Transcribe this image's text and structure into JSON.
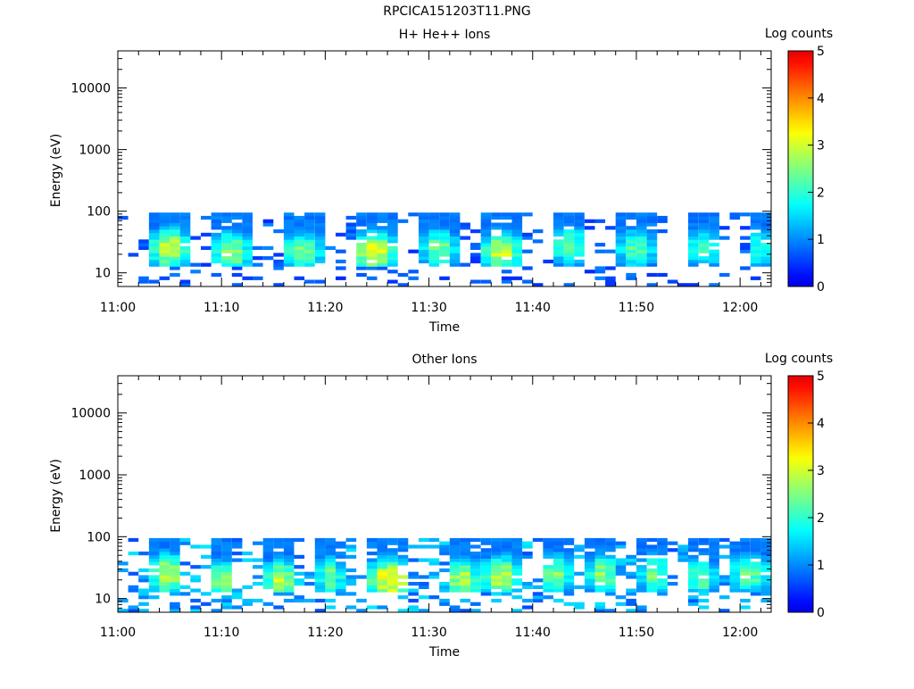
{
  "figure_title": "RPCICA151203T11.PNG",
  "chart_data": [
    {
      "type": "heatmap",
      "title": "H+ He++ Ions",
      "xlabel": "Time",
      "ylabel": "Energy (eV)",
      "y_scale": "log",
      "ylim": [
        6,
        40000
      ],
      "xlim": [
        "11:00",
        "12:03"
      ],
      "x_ticks": [
        "11:00",
        "11:10",
        "11:20",
        "11:30",
        "11:40",
        "11:50",
        "12:00"
      ],
      "y_ticks": [
        "10",
        "100",
        "1000",
        "10000"
      ],
      "colorbar": {
        "label": "Log counts",
        "range": [
          0,
          5
        ],
        "ticks": [
          "0",
          "1",
          "2",
          "3",
          "4",
          "5"
        ]
      },
      "energy_band_eV": [
        6,
        95
      ],
      "bursts": [
        {
          "start": "11:03.5",
          "end": "11:06.5",
          "peak_log_counts": 3.0,
          "peak_energy_eV": 25
        },
        {
          "start": "11:09.5",
          "end": "11:12.5",
          "peak_log_counts": 2.7,
          "peak_energy_eV": 22
        },
        {
          "start": "11:16",
          "end": "11:19.5",
          "peak_log_counts": 2.4,
          "peak_energy_eV": 22
        },
        {
          "start": "11:23",
          "end": "11:26.5",
          "peak_log_counts": 3.1,
          "peak_energy_eV": 22
        },
        {
          "start": "11:29.5",
          "end": "11:32.5",
          "peak_log_counts": 2.4,
          "peak_energy_eV": 25
        },
        {
          "start": "11:35.5",
          "end": "11:38.5",
          "peak_log_counts": 3.0,
          "peak_energy_eV": 22
        },
        {
          "start": "11:42",
          "end": "11:45",
          "peak_log_counts": 2.3,
          "peak_energy_eV": 28
        },
        {
          "start": "11:48.5",
          "end": "11:51.5",
          "peak_log_counts": 2.3,
          "peak_energy_eV": 25
        },
        {
          "start": "11:55",
          "end": "11:58",
          "peak_log_counts": 2.1,
          "peak_energy_eV": 25
        },
        {
          "start": "12:01",
          "end": "12:03",
          "peak_log_counts": 2.1,
          "peak_energy_eV": 25
        }
      ]
    },
    {
      "type": "heatmap",
      "title": "Other Ions",
      "xlabel": "Time",
      "ylabel": "Energy (eV)",
      "y_scale": "log",
      "ylim": [
        6,
        40000
      ],
      "xlim": [
        "11:00",
        "12:03"
      ],
      "x_ticks": [
        "11:00",
        "11:10",
        "11:20",
        "11:30",
        "11:40",
        "11:50",
        "12:00"
      ],
      "y_ticks": [
        "10",
        "100",
        "1000",
        "10000"
      ],
      "colorbar": {
        "label": "Log counts",
        "range": [
          0,
          5
        ],
        "ticks": [
          "0",
          "1",
          "2",
          "3",
          "4",
          "5"
        ]
      },
      "energy_band_eV": [
        6,
        95
      ],
      "bursts": [
        {
          "start": "11:03.5",
          "end": "11:06",
          "peak_log_counts": 3.0,
          "peak_energy_eV": 25
        },
        {
          "start": "11:09",
          "end": "11:11",
          "peak_log_counts": 2.6,
          "peak_energy_eV": 20
        },
        {
          "start": "11:14.5",
          "end": "11:17",
          "peak_log_counts": 2.9,
          "peak_energy_eV": 20
        },
        {
          "start": "11:19.5",
          "end": "11:21.5",
          "peak_log_counts": 2.5,
          "peak_energy_eV": 22
        },
        {
          "start": "11:24.5",
          "end": "11:28",
          "peak_log_counts": 3.4,
          "peak_energy_eV": 20
        },
        {
          "start": "11:32",
          "end": "11:34.5",
          "peak_log_counts": 2.9,
          "peak_energy_eV": 20
        },
        {
          "start": "11:35.5",
          "end": "11:38.5",
          "peak_log_counts": 3.0,
          "peak_energy_eV": 22
        },
        {
          "start": "11:41",
          "end": "11:43.5",
          "peak_log_counts": 2.5,
          "peak_energy_eV": 25
        },
        {
          "start": "11:45.5",
          "end": "11:48",
          "peak_log_counts": 2.6,
          "peak_energy_eV": 25
        },
        {
          "start": "11:50.5",
          "end": "11:53",
          "peak_log_counts": 2.4,
          "peak_energy_eV": 25
        },
        {
          "start": "11:55",
          "end": "11:57.5",
          "peak_log_counts": 2.3,
          "peak_energy_eV": 22
        },
        {
          "start": "11:59",
          "end": "12:03",
          "peak_log_counts": 2.3,
          "peak_energy_eV": 25
        }
      ]
    }
  ]
}
